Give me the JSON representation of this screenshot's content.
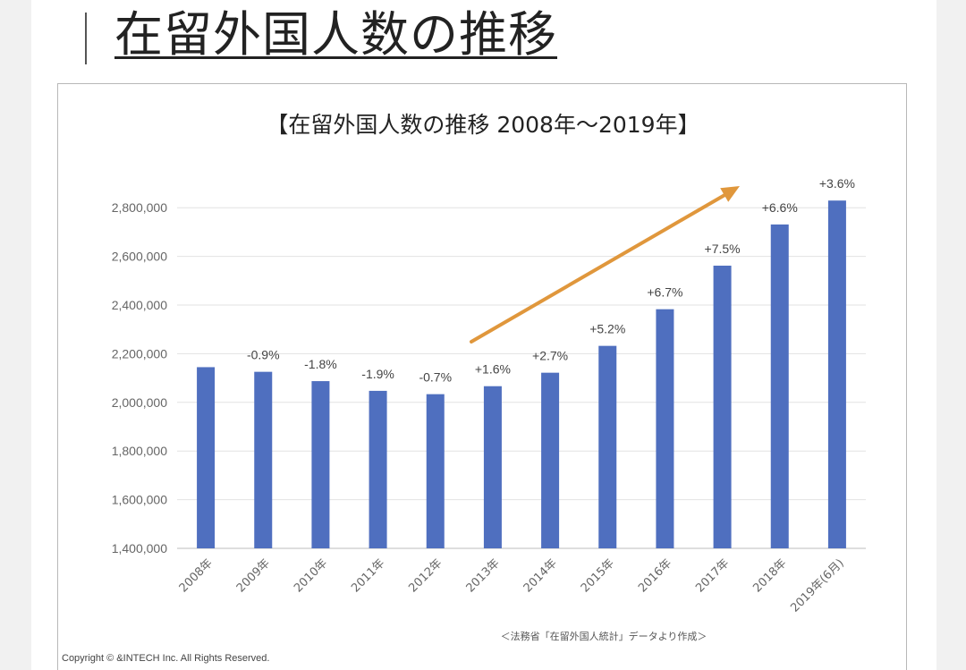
{
  "page": {
    "heading": "在留外国人数の推移",
    "copyright": "Copyright ©  &INTECH Inc. All Rights Reserved."
  },
  "chart_data": {
    "type": "bar",
    "title": "【在留外国人数の推移 2008年〜2019年】",
    "source_note": "＜法務省「在留外国人統計」データより作成＞",
    "categories": [
      "2008年",
      "2009年",
      "2010年",
      "2011年",
      "2012年",
      "2013年",
      "2014年",
      "2015年",
      "2016年",
      "2017年",
      "2018年",
      "2019年(6月)"
    ],
    "values": [
      2144682,
      2125571,
      2087261,
      2047349,
      2033656,
      2066445,
      2121831,
      2232189,
      2382822,
      2561848,
      2731093,
      2829416
    ],
    "data_labels": [
      "",
      "-0.9%",
      "-1.8%",
      "-1.9%",
      "-0.7%",
      "+1.6%",
      "+2.7%",
      "+5.2%",
      "+6.7%",
      "+7.5%",
      "+6.6%",
      "+3.6%"
    ],
    "yticks": [
      1400000,
      1600000,
      1800000,
      2000000,
      2200000,
      2400000,
      2600000,
      2800000
    ],
    "ytick_labels": [
      "1,400,000",
      "1,600,000",
      "1,800,000",
      "2,000,000",
      "2,200,000",
      "2,400,000",
      "2,600,000",
      "2,800,000"
    ],
    "ylim": [
      1400000,
      2900000
    ],
    "grid": true,
    "bar_color": "#4f6fbf",
    "arrow_color": "#e0973c",
    "annotation": "upward-trend-arrow"
  }
}
